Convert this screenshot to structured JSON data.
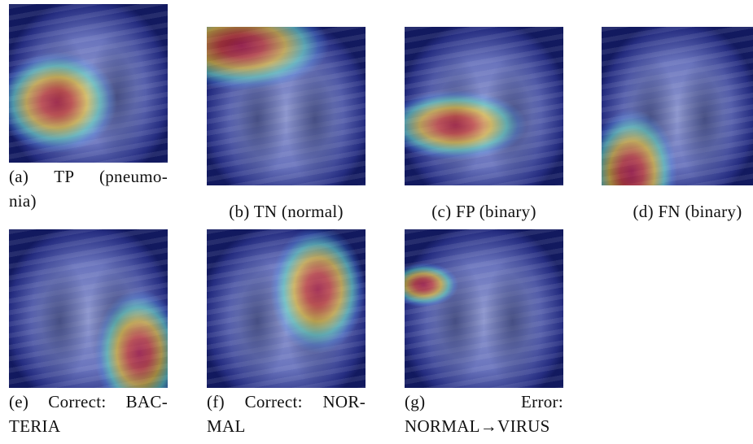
{
  "figures": [
    {
      "caption": [
        "(a) TP (pneumo-",
        "nia)"
      ]
    },
    {
      "caption": [
        "(b) TN (normal)"
      ]
    },
    {
      "caption": [
        "(c) FP (binary)"
      ]
    },
    {
      "caption": [
        "(d) FN (binary)"
      ]
    },
    {
      "caption": [
        "(e) Correct: BAC-",
        "TERIA"
      ]
    },
    {
      "caption": [
        "(f) Correct: NOR-",
        "MAL"
      ]
    },
    {
      "caption": [
        "(g) Error:",
        "NORMAL→VIRUS"
      ]
    }
  ]
}
